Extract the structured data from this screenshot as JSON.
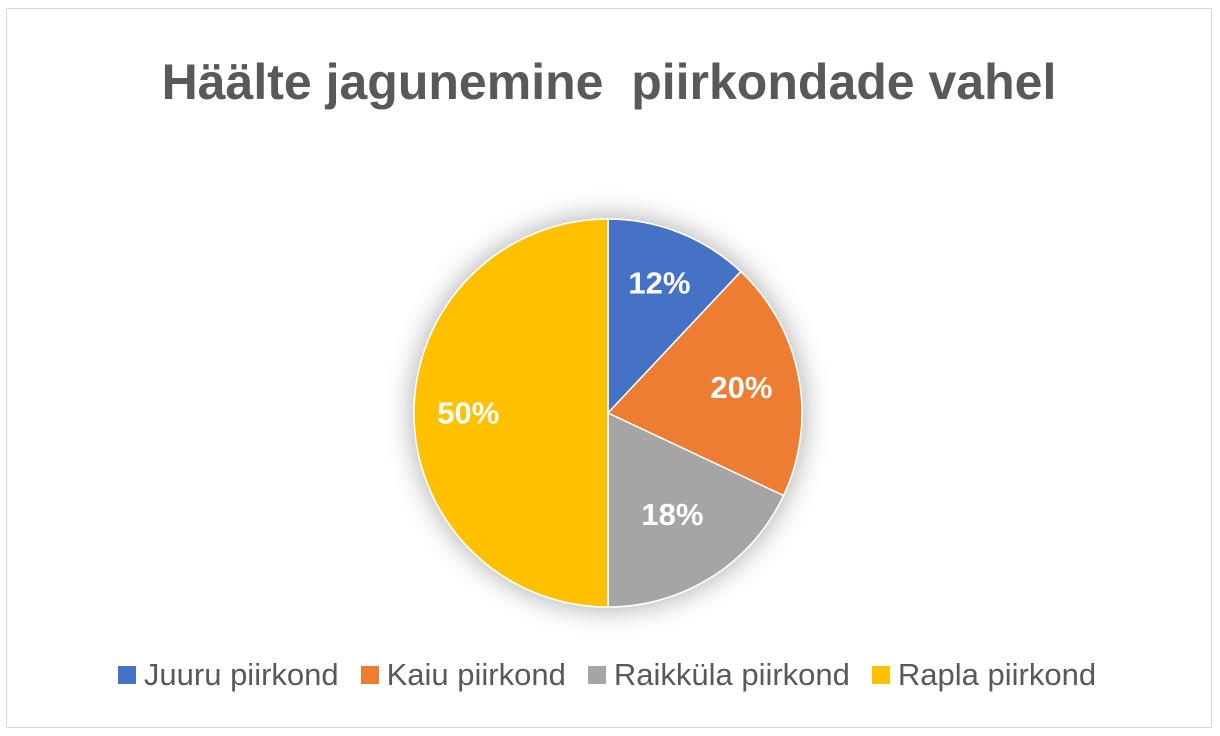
{
  "chart_data": {
    "type": "pie",
    "title": "Häälte jagunemine  piirkondade vahel",
    "categories": [
      "Juuru piirkond",
      "Kaiu piirkond",
      "Raikküla piirkond",
      "Rapla piirkond"
    ],
    "values": [
      12,
      20,
      18,
      50
    ],
    "value_labels": [
      "12%",
      "20%",
      "18%",
      "50%"
    ],
    "colors": [
      "#4472c4",
      "#ed7d31",
      "#a5a5a5",
      "#ffc000"
    ],
    "legend_position": "bottom"
  }
}
